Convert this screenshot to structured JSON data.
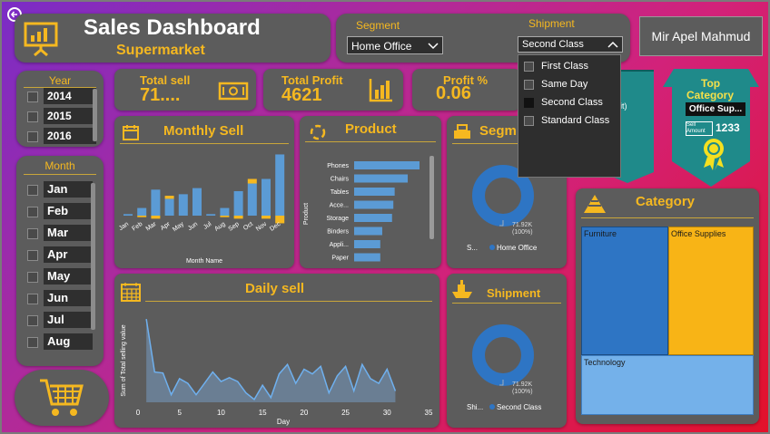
{
  "header": {
    "title": "Sales Dashboard",
    "subtitle": "Supermarket",
    "author": "Mir Apel Mahmud"
  },
  "filters": {
    "segment_label": "Segment",
    "segment_value": "Home Office",
    "shipment_label": "Shipment",
    "shipment_value": "Second Class",
    "shipment_options": [
      {
        "label": "First Class",
        "checked": false
      },
      {
        "label": "Same Day",
        "checked": false
      },
      {
        "label": "Second Class",
        "checked": true
      },
      {
        "label": "Standard Class",
        "checked": false
      }
    ]
  },
  "year_slicer": {
    "title": "Year",
    "items": [
      "2014",
      "2015",
      "2016"
    ]
  },
  "month_slicer": {
    "title": "Month",
    "items": [
      "Jan",
      "Feb",
      "Mar",
      "Apr",
      "May",
      "Jun",
      "Jul",
      "Aug"
    ]
  },
  "kpis": {
    "total_sell_label": "Total sell",
    "total_sell_value": "71....",
    "total_profit_label": "Total Profit",
    "total_profit_value": "4621",
    "profit_pct_label": "Profit %",
    "profit_pct_value": "0.06"
  },
  "ribbon_partial": {
    "line1": "t",
    "line2": "nit)"
  },
  "top_category": {
    "title_line1": "Top",
    "title_line2": "Category",
    "name": "Office Sup...",
    "sell_label": "Sell Amount",
    "sell_value": "1233"
  },
  "icons": {
    "header": "presentation-chart-icon",
    "total_sell": "money-icon",
    "total_profit": "bar-chart-icon",
    "monthly": "calendar-icon",
    "product": "cycle-icon",
    "segment": "cash-register-icon",
    "daily": "calendar-grid-icon",
    "shipment": "ship-icon",
    "category": "pyramid-icon",
    "cart": "shopping-cart-icon",
    "back": "back-arrow-icon",
    "ribbon": "award-ribbon-icon"
  },
  "colors": {
    "gold": "#f5b820",
    "panel": "#5c5c5c",
    "blue": "#5b9bd5",
    "deep_blue": "#2e6fbd",
    "teal": "#1f8a8a"
  },
  "chart_data": [
    {
      "type": "bar",
      "title": "Monthly Sell",
      "xlabel": "Month Name",
      "categories": [
        "Jan",
        "Feb",
        "Mar",
        "Apr",
        "May",
        "Jun",
        "Jul",
        "Aug",
        "Sep",
        "Oct",
        "Nov",
        "Dec"
      ],
      "series": [
        {
          "values": [
            1,
            5,
            17,
            11,
            14,
            18,
            1,
            5,
            16,
            21,
            24,
            40
          ]
        },
        {
          "values": [
            0,
            1,
            2,
            2,
            0,
            0,
            0,
            1,
            2,
            3,
            2,
            5
          ]
        }
      ]
    },
    {
      "type": "bar",
      "title": "Product",
      "ylabel": "Product",
      "categories": [
        "Phones",
        "Chairs",
        "Tables",
        "Acce...",
        "Storage",
        "Binders",
        "Appli...",
        "Paper"
      ],
      "values": [
        100,
        82,
        62,
        60,
        58,
        43,
        40,
        40
      ]
    },
    {
      "type": "pie",
      "title": "Segm",
      "center_label": "71.92K",
      "center_pct": "(100%)",
      "legend_prefix": "S...",
      "legend": [
        "Home Office"
      ],
      "values": [
        100
      ]
    },
    {
      "type": "area",
      "title": "Daily sell",
      "xlabel": "Day",
      "ylabel": "Sum of Total selling value",
      "xticks": [
        0,
        5,
        10,
        15,
        20,
        25,
        30,
        35
      ],
      "xlim": [
        0,
        35
      ],
      "x": [
        1,
        2,
        3,
        4,
        5,
        6,
        7,
        8,
        9,
        10,
        11,
        12,
        13,
        14,
        15,
        16,
        17,
        18,
        19,
        20,
        21,
        22,
        23,
        24,
        25,
        26,
        27,
        28,
        29,
        30,
        31
      ],
      "y": [
        88,
        32,
        31,
        8,
        25,
        20,
        8,
        20,
        32,
        22,
        26,
        22,
        10,
        3,
        18,
        5,
        30,
        40,
        20,
        35,
        30,
        38,
        10,
        28,
        38,
        12,
        40,
        25,
        20,
        35,
        12
      ]
    },
    {
      "type": "pie",
      "title": "Shipment",
      "center_label": "71.92K",
      "center_pct": "(100%)",
      "legend_prefix": "Shi...",
      "legend": [
        "Second Class"
      ],
      "values": [
        100
      ]
    },
    {
      "type": "heatmap",
      "title": "Category",
      "categories": [
        "Furniture",
        "Office Supplies",
        "Technology"
      ]
    }
  ]
}
